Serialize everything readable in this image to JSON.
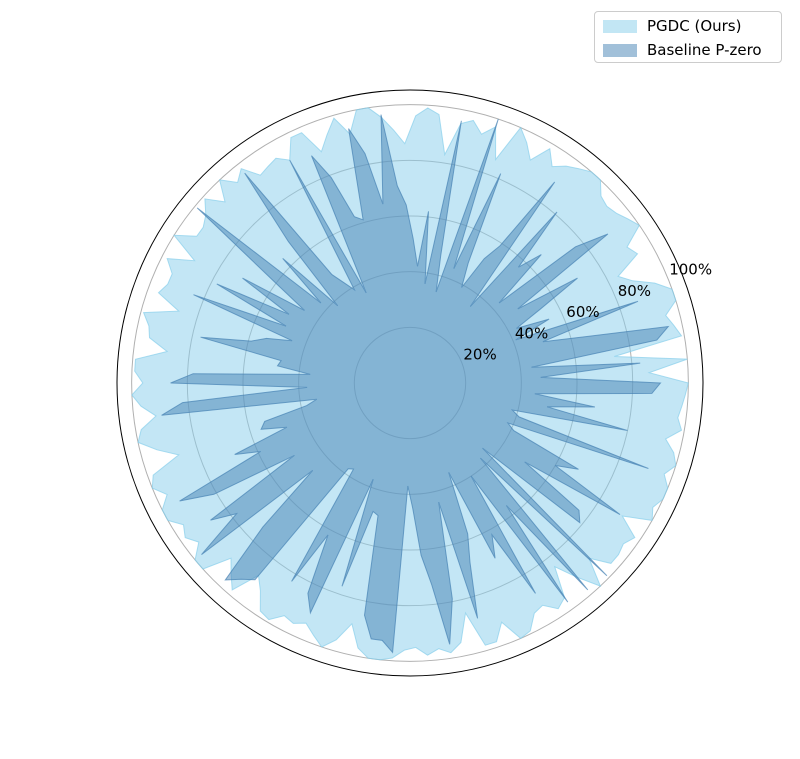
{
  "chart_data": {
    "type": "radar",
    "title": "",
    "rlim": [
      0,
      100
    ],
    "r_ticks": [
      "20%",
      "40%",
      "60%",
      "80%",
      "100%"
    ],
    "grid": true,
    "legend_position": "top-right",
    "series": [
      {
        "name": "PGDC (Ours)",
        "color": "#87ceeb",
        "opacity": 0.5,
        "values": [
          100,
          86,
          100,
          74,
          99,
          97,
          95,
          100,
          100,
          95,
          88,
          84,
          94,
          92,
          100,
          98,
          96,
          95,
          96,
          100,
          100,
          98,
          96,
          93,
          98,
          91,
          96,
          100,
          86,
          97,
          93,
          97,
          95,
          83,
          97,
          99,
          96,
          86,
          91,
          96,
          100,
          100,
          92,
          99,
          94,
          89,
          98,
          98,
          91,
          94,
          93,
          92,
          98,
          95,
          100,
          93,
          99,
          95,
          93,
          93,
          100,
          89,
          98,
          94,
          94,
          96,
          87,
          99,
          96,
          95,
          88,
          99,
          99,
          96,
          100,
          97,
          92,
          98,
          100,
          94,
          87,
          98,
          100,
          96,
          100,
          100,
          96,
          98,
          95,
          100,
          100,
          90,
          94,
          98,
          88,
          92,
          98,
          99,
          95,
          96,
          94,
          97,
          100,
          96,
          89,
          97,
          100,
          100,
          99,
          96,
          95,
          98,
          96,
          98,
          95,
          85,
          98,
          98,
          92,
          100,
          99,
          94,
          93,
          97,
          95,
          84,
          92,
          100,
          90,
          97,
          97,
          96,
          98,
          90,
          100,
          98,
          100,
          100,
          97,
          100,
          98,
          94,
          99,
          97,
          98,
          99
        ]
      },
      {
        "name": "Baseline P-zero",
        "color": "#4682b4",
        "opacity": 0.5,
        "values": [
          90,
          47,
          83,
          44,
          90,
          95,
          65,
          50,
          87,
          41,
          55,
          43,
          54,
          71,
          47,
          89,
          77,
          43,
          66,
          57,
          81,
          35,
          89,
          59,
          52,
          39,
          48,
          82,
          44,
          100,
          34,
          47,
          96,
          36,
          62,
          42,
          52,
          64,
          71,
          97,
          65,
          84,
          94,
          61,
          63,
          79,
          89,
          36,
          91,
          39,
          43,
          48,
          96,
          67,
          38,
          64,
          43,
          99,
          63,
          46,
          71,
          50,
          78,
          49,
          84,
          45,
          54,
          59,
          77,
          47,
          48,
          36,
          78,
          86,
          37,
          82,
          90,
          34,
          38,
          54,
          56,
          47,
          68,
          59,
          93,
          81,
          49,
          87,
          78,
          97,
          47,
          74,
          97,
          93,
          90,
          38,
          37,
          83,
          62,
          84,
          90,
          37,
          77,
          48,
          49,
          85,
          93,
          93,
          97,
          37,
          45,
          62,
          73,
          95,
          79,
          44,
          88,
          68,
          58,
          35,
          70,
          62,
          88,
          40,
          97,
          56,
          98,
          37,
          99,
          35,
          79,
          76,
          50,
          89,
          60,
          68,
          41,
          38,
          91,
          41,
          38,
          80,
          50,
          67,
          45,
          87
        ]
      }
    ]
  },
  "legend": {
    "items": [
      {
        "label": "PGDC (Ours)",
        "color": "#87ceeb"
      },
      {
        "label": "Baseline P-zero",
        "color": "#4682b4"
      }
    ]
  }
}
